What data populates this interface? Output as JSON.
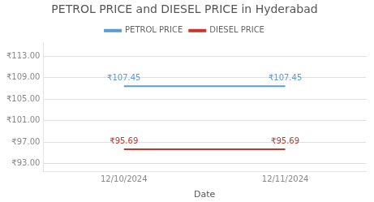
{
  "chart_data": {
    "type": "line",
    "title": "PETROL PRICE and DIESEL PRICE in Hyderabad",
    "xlabel": "Date",
    "categories": [
      "12/10/2024",
      "12/11/2024"
    ],
    "series": [
      {
        "name": "PETROL PRICE",
        "color": "#5b9bd5",
        "values": [
          107.45,
          107.45
        ],
        "value_labels": [
          "₹107.45",
          "₹107.45"
        ]
      },
      {
        "name": "DIESEL PRICE",
        "color": "#c0392b",
        "values": [
          95.69,
          95.69
        ],
        "value_labels": [
          "₹95.69",
          "₹95.69"
        ]
      }
    ],
    "ylim": [
      91.5,
      115.5
    ],
    "yticks": [
      {
        "value": 93.0,
        "label": "₹93.00"
      },
      {
        "value": 97.0,
        "label": "₹97.00"
      },
      {
        "value": 101.0,
        "label": "₹101.00"
      },
      {
        "value": 105.0,
        "label": "₹105.00"
      },
      {
        "value": 109.0,
        "label": "₹109.00"
      },
      {
        "value": 113.0,
        "label": "₹113.00"
      }
    ],
    "grid": true,
    "legend": "top",
    "data_labels": true
  }
}
